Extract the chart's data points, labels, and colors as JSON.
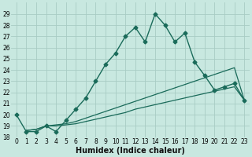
{
  "xlabel": "Humidex (Indice chaleur)",
  "ylabel": "",
  "bg_color": "#c8e8e0",
  "grid_color": "#a8ccc4",
  "line_color": "#1a6b5a",
  "xlim": [
    -0.5,
    23.5
  ],
  "ylim": [
    18,
    30
  ],
  "yticks": [
    18,
    19,
    20,
    21,
    22,
    23,
    24,
    25,
    26,
    27,
    28,
    29
  ],
  "xticks": [
    0,
    1,
    2,
    3,
    4,
    5,
    6,
    7,
    8,
    9,
    10,
    11,
    12,
    13,
    14,
    15,
    16,
    17,
    18,
    19,
    20,
    21,
    22,
    23
  ],
  "series": [
    {
      "x": [
        0,
        1,
        2,
        3,
        4,
        5,
        6,
        7,
        8,
        9,
        10,
        11,
        12,
        13,
        14,
        15,
        16,
        17,
        18,
        19,
        20,
        21,
        22,
        23
      ],
      "y": [
        20.0,
        18.5,
        18.5,
        19.0,
        18.5,
        19.5,
        20.5,
        21.5,
        23.0,
        24.5,
        25.5,
        27.0,
        27.8,
        26.5,
        29.0,
        28.0,
        26.5,
        27.3,
        24.7,
        23.5,
        22.2,
        22.5,
        22.8,
        21.3
      ],
      "marker": "D",
      "markersize": 2.5,
      "linewidth": 1.0,
      "linestyle": "-"
    },
    {
      "x": [
        1,
        2,
        3,
        4,
        5,
        6,
        7,
        8,
        9,
        10,
        11,
        12,
        13,
        14,
        15,
        16,
        17,
        18,
        19,
        20,
        21,
        22,
        23
      ],
      "y": [
        18.6,
        18.7,
        19.0,
        19.1,
        19.2,
        19.4,
        19.7,
        20.0,
        20.3,
        20.6,
        20.9,
        21.2,
        21.5,
        21.8,
        22.1,
        22.4,
        22.7,
        23.0,
        23.3,
        23.6,
        23.9,
        24.2,
        21.3
      ],
      "marker": null,
      "markersize": 0,
      "linewidth": 0.9,
      "linestyle": "-"
    },
    {
      "x": [
        1,
        2,
        3,
        4,
        5,
        6,
        7,
        8,
        9,
        10,
        11,
        12,
        13,
        14,
        15,
        16,
        17,
        18,
        19,
        20,
        21,
        22,
        23
      ],
      "y": [
        18.6,
        18.7,
        19.0,
        19.0,
        19.1,
        19.2,
        19.4,
        19.6,
        19.8,
        20.0,
        20.2,
        20.5,
        20.7,
        20.9,
        21.1,
        21.3,
        21.5,
        21.7,
        21.9,
        22.1,
        22.3,
        22.5,
        21.3
      ],
      "marker": null,
      "markersize": 0,
      "linewidth": 0.9,
      "linestyle": "-"
    }
  ],
  "tick_fontsize": 5.5,
  "xlabel_fontsize": 7.0
}
